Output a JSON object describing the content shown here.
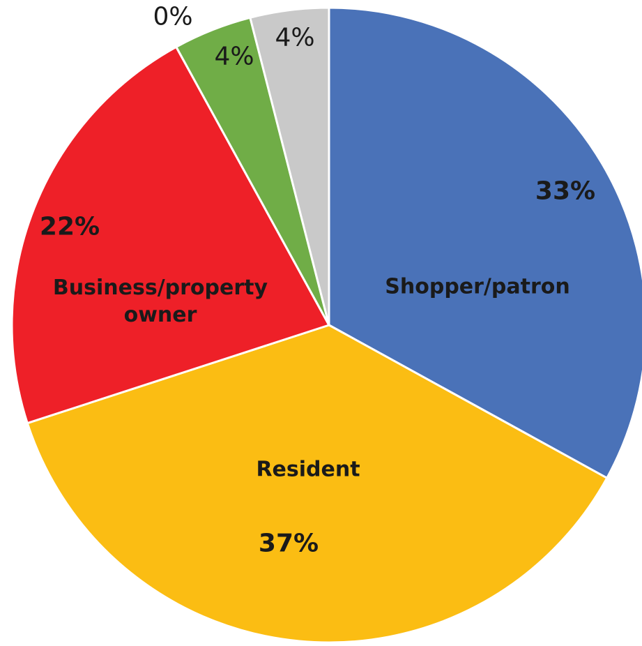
{
  "chart_data": {
    "type": "pie",
    "categories": [
      "Shopper/patron",
      "Resident",
      "Business/property owner",
      null,
      null,
      null
    ],
    "values": [
      33,
      37,
      22,
      0,
      4,
      4
    ],
    "value_labels": [
      "33%",
      "37%",
      "22%",
      "0%",
      "4%",
      "4%"
    ],
    "colors": [
      "#4a72b8",
      "#fbbd13",
      "#ee2028",
      "#a5a5a5",
      "#70ad47",
      "#c9c9c9"
    ]
  }
}
